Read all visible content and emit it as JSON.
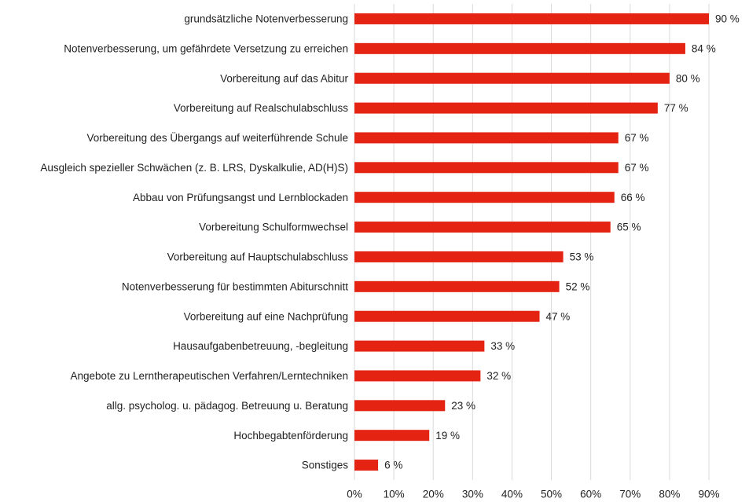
{
  "chart_data": {
    "type": "hbar",
    "categories": [
      "grundsätzliche Notenverbesserung",
      "Notenverbesserung, um gefährdete Versetzung zu erreichen",
      "Vorbereitung auf das Abitur",
      "Vorbereitung auf Realschulabschluss",
      "Vorbereitung des Übergangs auf weiterführende Schule",
      "Ausgleich spezieller Schwächen (z. B. LRS, Dyskalkulie, AD(H)S)",
      "Abbau von Prüfungsangst und Lernblockaden",
      "Vorbereitung Schulformwechsel",
      "Vorbereitung auf Hauptschulabschluss",
      "Notenverbesserung für bestimmten Abiturschnitt",
      "Vorbereitung auf eine Nachprüfung",
      "Hausaufgabenbetreuung, -begleitung",
      "Angebote zu Lerntherapeutischen Verfahren/Lerntechniken",
      "allg. psycholog. u. pädagog. Betreuung u. Beratung",
      "Hochbegabtenförderung",
      "Sonstiges"
    ],
    "values": [
      90,
      84,
      80,
      77,
      67,
      67,
      66,
      65,
      53,
      52,
      47,
      33,
      32,
      23,
      19,
      6
    ],
    "value_labels": [
      "90 %",
      "84 %",
      "80 %",
      "77 %",
      "67 %",
      "67 %",
      "66 %",
      "65 %",
      "53 %",
      "52 %",
      "47 %",
      "33 %",
      "32 %",
      "23 %",
      "19 %",
      "6 %"
    ],
    "color": "#e42313",
    "xlim": [
      0,
      90
    ],
    "xticks": [
      {
        "value": 0,
        "label": "0%"
      },
      {
        "value": 10,
        "label": "10%"
      },
      {
        "value": 20,
        "label": "20%"
      },
      {
        "value": 30,
        "label": "30%"
      },
      {
        "value": 40,
        "label": "40%"
      },
      {
        "value": 50,
        "label": "50%"
      },
      {
        "value": 60,
        "label": "60%"
      },
      {
        "value": 70,
        "label": "70%"
      },
      {
        "value": 80,
        "label": "80%"
      },
      {
        "value": 90,
        "label": "90%"
      }
    ],
    "grid": true
  }
}
